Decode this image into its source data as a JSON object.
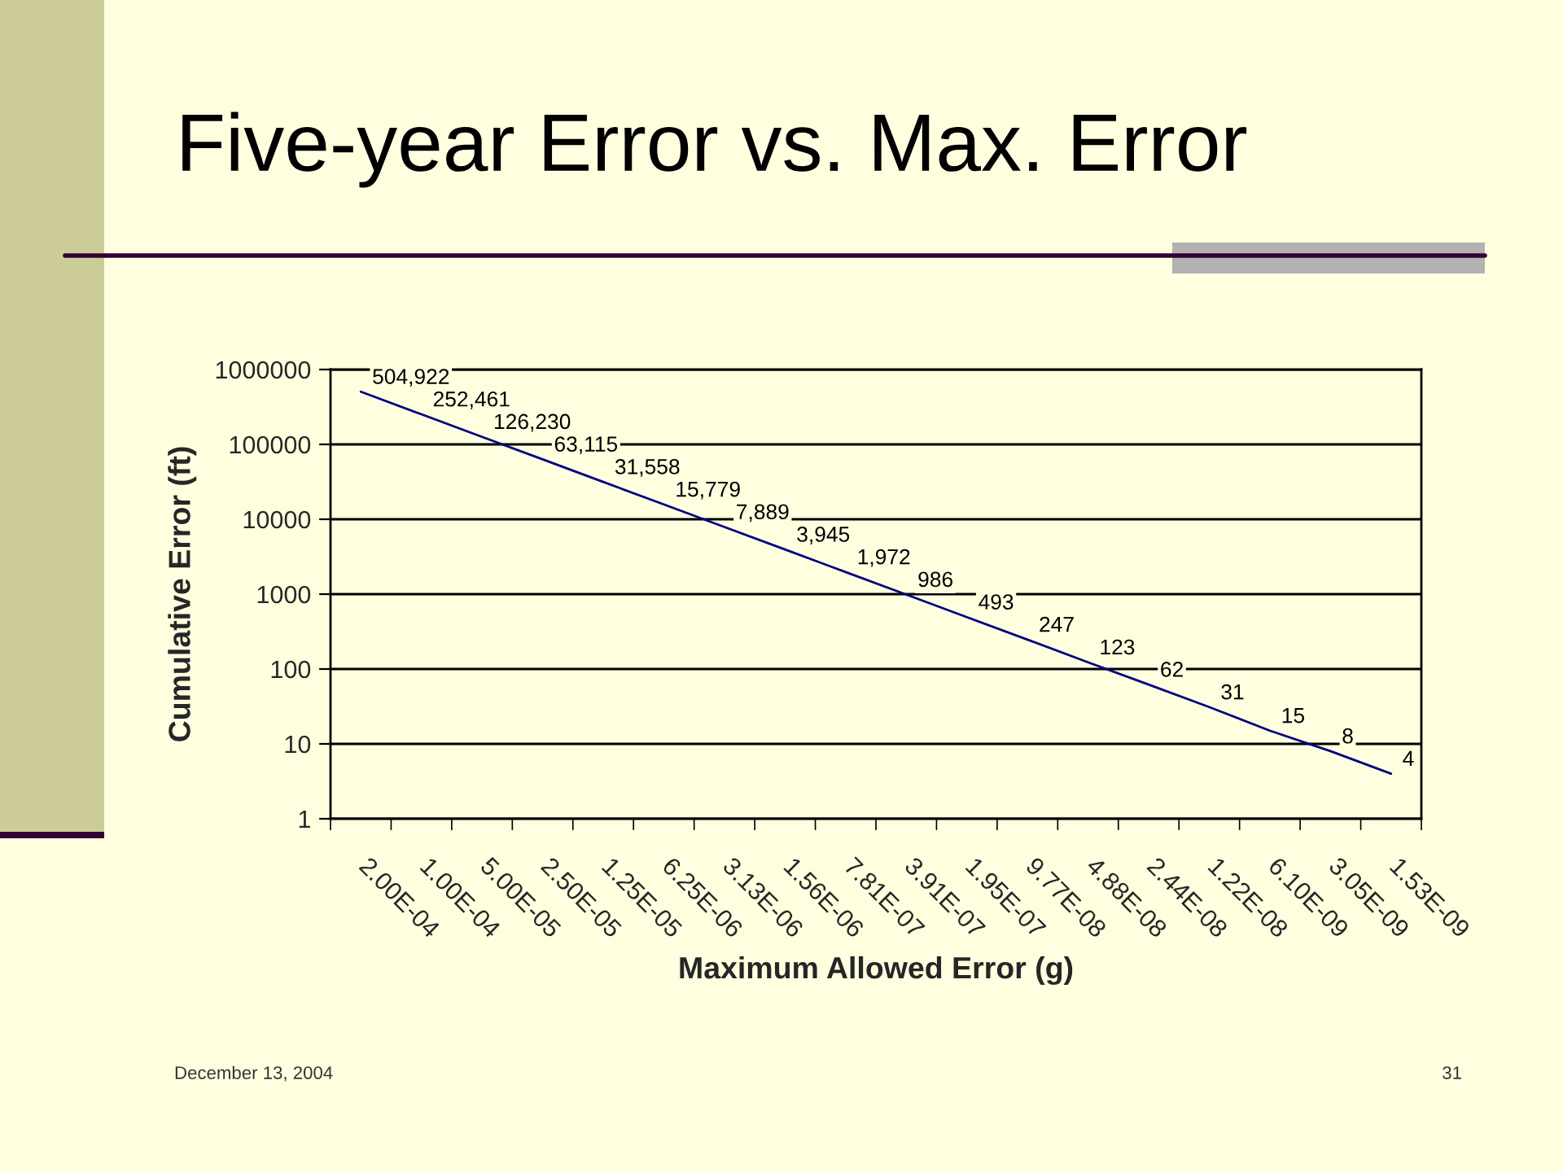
{
  "chart_data": {
    "type": "line",
    "title": "Five-year Error vs. Max. Error",
    "xlabel": "Maximum Allowed Error (g)",
    "ylabel": "Cumulative Error (ft)",
    "categories": [
      "2.00E-04",
      "1.00E-04",
      "5.00E-05",
      "2.50E-05",
      "1.25E-05",
      "6.25E-06",
      "3.13E-06",
      "1.56E-06",
      "7.81E-07",
      "3.91E-07",
      "1.95E-07",
      "9.77E-08",
      "4.88E-08",
      "2.44E-08",
      "1.22E-08",
      "6.10E-09",
      "3.05E-09",
      "1.53E-09"
    ],
    "values": [
      504922,
      252461,
      126230,
      63115,
      31558,
      15779,
      7889,
      3945,
      1972,
      986,
      493,
      247,
      123,
      62,
      31,
      15,
      8,
      4
    ],
    "value_labels": [
      "504,922",
      "252,461",
      "126,230",
      "63,115",
      "31,558",
      "15,779",
      "7,889",
      "3,945",
      "1,972",
      "986",
      "493",
      "247",
      "123",
      "62",
      "31",
      "15",
      "8",
      "4"
    ],
    "color": "#000080",
    "line_style": "solid",
    "log": true,
    "ylim": [
      1,
      1000000
    ],
    "yticks": [
      1,
      10,
      100,
      1000,
      10000,
      100000,
      1000000
    ],
    "grid": "y",
    "annotations": [
      "December 13, 2004",
      "31"
    ]
  }
}
